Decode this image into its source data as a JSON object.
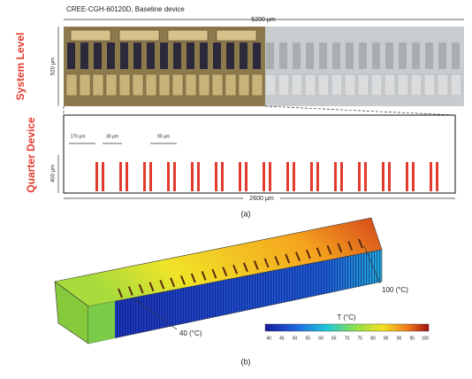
{
  "panel_a": {
    "device_title": "CREE-CGH-60120D, Baseline device",
    "system_label": "System Level",
    "quarter_label": "Quarter Device",
    "system_width": "5200 μm",
    "system_height": "520 μm",
    "pitch_1": "170 μm",
    "pitch_2": "30 μm",
    "pitch_3": "90 μm",
    "quarter_height": "400 μm",
    "quarter_width": "2600 μm",
    "caption": "(a)"
  },
  "panel_b": {
    "hot_label": "100 (°C)",
    "cold_label": "40 (°C)",
    "colorbar_title": "T (°C)",
    "colorbar_ticks": [
      "40",
      "45",
      "50",
      "55",
      "60",
      "65",
      "70",
      "75",
      "80",
      "85",
      "90",
      "95",
      "100"
    ],
    "caption": "(b)"
  }
}
